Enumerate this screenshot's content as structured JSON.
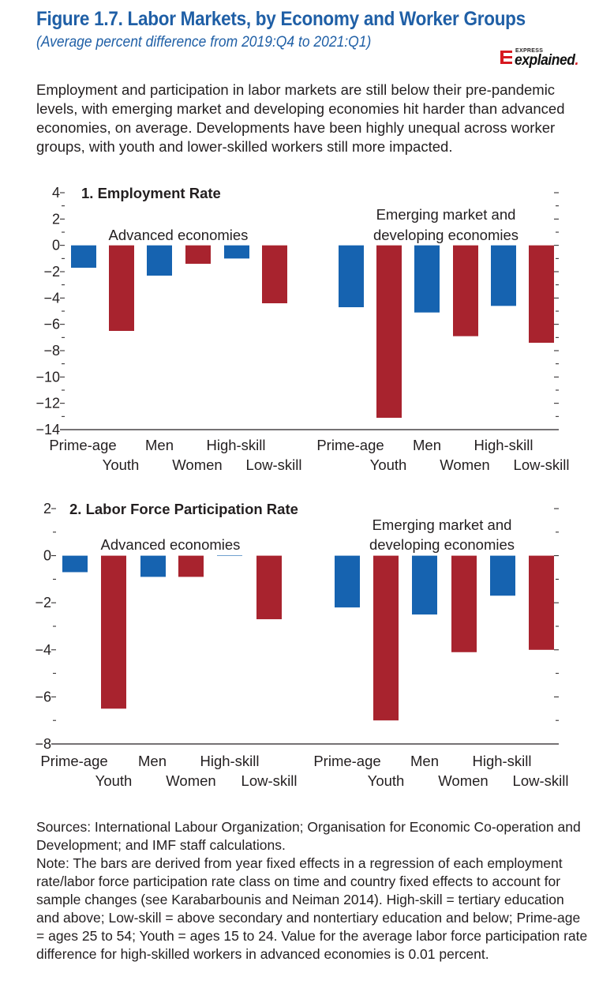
{
  "header": {
    "title": "Figure 1.7. Labor Markets, by Economy and Worker Groups",
    "subtitle": "(Average percent difference from 2019:Q4 to 2021:Q1)"
  },
  "logo": {
    "small_text": "EXPRESS",
    "main_text": "explained",
    "dot": ".",
    "accent_color": "#d71920"
  },
  "intro": "Employment and participation in labor markets are still below their pre-pandemic levels, with emerging market and developing economies hit harder than advanced economies, on average. Developments have been highly unequal across worker groups, with youth and lower-skilled workers still more impacted.",
  "colors": {
    "blue": "#1663b0",
    "red": "#a8232e"
  },
  "chart_data": [
    {
      "type": "bar",
      "title": "1. Employment Rate",
      "categories": [
        "Prime-age",
        "Youth",
        "Men",
        "Women",
        "High-skill",
        "Low-skill"
      ],
      "group_labels": [
        "Advanced economies",
        "Emerging market and developing economies"
      ],
      "group_label_lines": [
        [
          "Advanced economies"
        ],
        [
          "Emerging market and",
          "developing economies"
        ]
      ],
      "series": [
        {
          "group": "Advanced economies",
          "values": [
            -1.7,
            -6.5,
            -2.3,
            -1.4,
            -1.0,
            -4.4
          ]
        },
        {
          "group": "Emerging market and developing economies",
          "values": [
            -4.7,
            -13.1,
            -5.1,
            -6.9,
            -4.6,
            -7.4
          ]
        }
      ],
      "bar_colors": [
        "blue",
        "red",
        "blue",
        "red",
        "blue",
        "red"
      ],
      "ylim": [
        -14,
        4
      ],
      "yticks": [
        4,
        2,
        0,
        -2,
        -4,
        -6,
        -8,
        -10,
        -12,
        -14
      ],
      "ytick_labels": [
        "4",
        "2",
        "0",
        "−2",
        "−4",
        "−6",
        "−8",
        "−10",
        "−12",
        "−14"
      ]
    },
    {
      "type": "bar",
      "title": "2. Labor Force Participation Rate",
      "categories": [
        "Prime-age",
        "Youth",
        "Men",
        "Women",
        "High-skill",
        "Low-skill"
      ],
      "group_labels": [
        "Advanced economies",
        "Emerging market and developing economies"
      ],
      "group_label_lines": [
        [
          "Advanced economies"
        ],
        [
          "Emerging market and",
          "developing economies"
        ]
      ],
      "series": [
        {
          "group": "Advanced economies",
          "values": [
            -0.7,
            -6.5,
            -0.9,
            -0.9,
            0.01,
            -2.7
          ]
        },
        {
          "group": "Emerging market and developing economies",
          "values": [
            -2.2,
            -7.0,
            -2.5,
            -4.1,
            -1.7,
            -4.0
          ]
        }
      ],
      "bar_colors": [
        "blue",
        "red",
        "blue",
        "red",
        "blue",
        "red"
      ],
      "ylim": [
        -8,
        2
      ],
      "yticks": [
        2,
        0,
        -2,
        -4,
        -6,
        -8
      ],
      "ytick_labels": [
        "2",
        "0",
        "−2",
        "−4",
        "−6",
        "−8"
      ]
    }
  ],
  "notes": {
    "sources": "Sources: International Labour Organization; Organisation for Economic Co-operation and Development; and IMF staff calculations.",
    "note": "Note: The bars are derived from year fixed effects in a regression of each employment rate/labor force participation rate class on time and country fixed effects to account for sample changes (see Karabarbounis and Neiman 2014). High-skill = tertiary education and above; Low-skill = above secondary and nontertiary education and below; Prime-age = ages 25 to 54; Youth = ages 15 to 24. Value for the average labor force participation rate difference for high-skilled workers in advanced economies is 0.01 percent."
  }
}
